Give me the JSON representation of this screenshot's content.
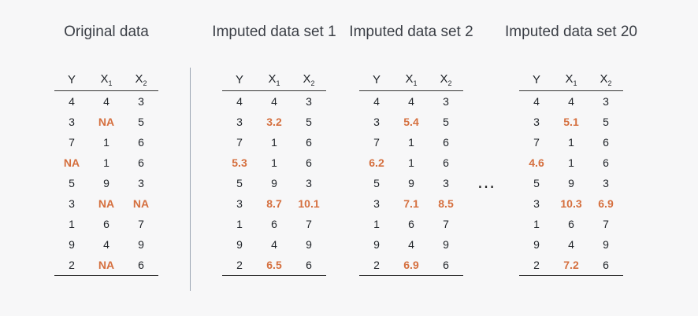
{
  "titles": {
    "original": "Original data",
    "imp1": "Imputed data set 1",
    "imp2": "Imputed data set 2",
    "imp20": "Imputed data set 20"
  },
  "ellipsis": "…",
  "colors": {
    "imputed": "#d56f3e",
    "text": "#1f2328",
    "divider": "#9aa4b2"
  },
  "header": {
    "y": "Y",
    "x": "X",
    "x1_sub": "1",
    "x2_sub": "2"
  },
  "tables": {
    "original": [
      [
        "4",
        "4",
        "3"
      ],
      [
        "3",
        "NA",
        "5"
      ],
      [
        "7",
        "1",
        "6"
      ],
      [
        "NA",
        "1",
        "6"
      ],
      [
        "5",
        "9",
        "3"
      ],
      [
        "3",
        "NA",
        "NA"
      ],
      [
        "1",
        "6",
        "7"
      ],
      [
        "9",
        "4",
        "9"
      ],
      [
        "2",
        "NA",
        "6"
      ]
    ],
    "imp1": [
      [
        "4",
        "4",
        "3"
      ],
      [
        "3",
        "3.2",
        "5"
      ],
      [
        "7",
        "1",
        "6"
      ],
      [
        "5.3",
        "1",
        "6"
      ],
      [
        "5",
        "9",
        "3"
      ],
      [
        "3",
        "8.7",
        "10.1"
      ],
      [
        "1",
        "6",
        "7"
      ],
      [
        "9",
        "4",
        "9"
      ],
      [
        "2",
        "6.5",
        "6"
      ]
    ],
    "imp2": [
      [
        "4",
        "4",
        "3"
      ],
      [
        "3",
        "5.4",
        "5"
      ],
      [
        "7",
        "1",
        "6"
      ],
      [
        "6.2",
        "1",
        "6"
      ],
      [
        "5",
        "9",
        "3"
      ],
      [
        "3",
        "7.1",
        "8.5"
      ],
      [
        "1",
        "6",
        "7"
      ],
      [
        "9",
        "4",
        "9"
      ],
      [
        "2",
        "6.9",
        "6"
      ]
    ],
    "imp20": [
      [
        "4",
        "4",
        "3"
      ],
      [
        "3",
        "5.1",
        "5"
      ],
      [
        "7",
        "1",
        "6"
      ],
      [
        "4.6",
        "1",
        "6"
      ],
      [
        "5",
        "9",
        "3"
      ],
      [
        "3",
        "10.3",
        "6.9"
      ],
      [
        "1",
        "6",
        "7"
      ],
      [
        "9",
        "4",
        "9"
      ],
      [
        "2",
        "7.2",
        "6"
      ]
    ]
  }
}
